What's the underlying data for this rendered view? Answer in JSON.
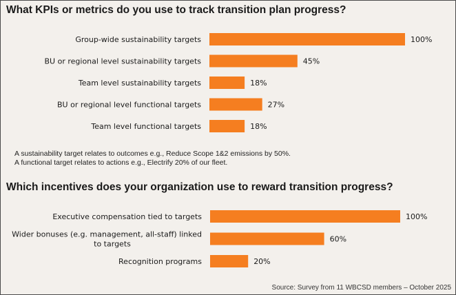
{
  "chart_data": [
    {
      "type": "bar",
      "orientation": "horizontal",
      "title": "What KPIs or metrics do you use to track transition plan progress?",
      "categories": [
        "Group-wide sustainability targets",
        "BU or regional level sustainability targets",
        "Team level sustainability targets",
        "BU or regional level functional targets",
        "Team level functional targets"
      ],
      "values": [
        100,
        45,
        18,
        27,
        18
      ],
      "value_labels": [
        "100%",
        "45%",
        "18%",
        "27%",
        "18%"
      ],
      "xlim": [
        0,
        100
      ],
      "color": "#f57e20",
      "grid": false,
      "notes": [
        "A sustainability target relates to outcomes e.g., Reduce Scope 1&2 emissions by 50%.",
        "A functional target relates to actions e.g., Electrify 20% of our fleet."
      ]
    },
    {
      "type": "bar",
      "orientation": "horizontal",
      "title": "Which incentives does your organization use to reward transition progress?",
      "categories": [
        "Executive compensation tied to targets",
        "Wider bonuses (e.g. management, all-staff) linked to targets",
        "Recognition programs"
      ],
      "values": [
        100,
        60,
        20
      ],
      "value_labels": [
        "100%",
        "60%",
        "20%"
      ],
      "xlim": [
        0,
        100
      ],
      "color": "#f57e20",
      "grid": false
    }
  ],
  "source": "Source: Survey from 11 WBCSD members – October 2025"
}
